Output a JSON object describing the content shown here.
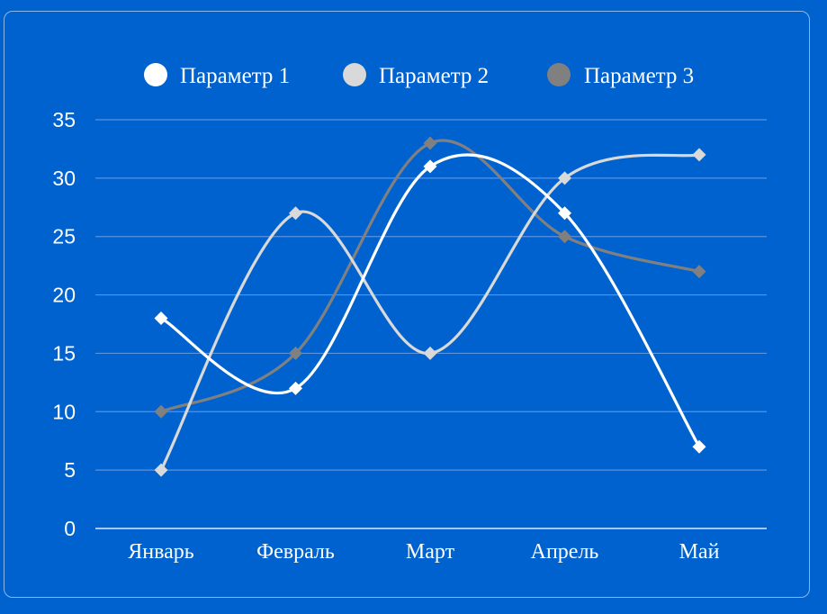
{
  "chart_data": {
    "type": "line",
    "categories": [
      "Январь",
      "Февраль",
      "Март",
      "Апрель",
      "Май"
    ],
    "series": [
      {
        "name": "Параметр 1",
        "values": [
          18,
          12,
          31,
          27,
          7
        ],
        "color": "#ffffff"
      },
      {
        "name": "Параметр 2",
        "values": [
          5,
          27,
          15,
          30,
          32
        ],
        "color": "#d9d9d9"
      },
      {
        "name": "Параметр 3",
        "values": [
          10,
          15,
          33,
          25,
          22
        ],
        "color": "#808080"
      }
    ],
    "ylim": [
      0,
      35
    ],
    "yticks": [
      "0",
      "5",
      "10",
      "15",
      "20",
      "25",
      "30",
      "35"
    ],
    "grid": true,
    "legend": "top-center",
    "background": "#0062cf",
    "gridline_color": "#5b93dd"
  }
}
